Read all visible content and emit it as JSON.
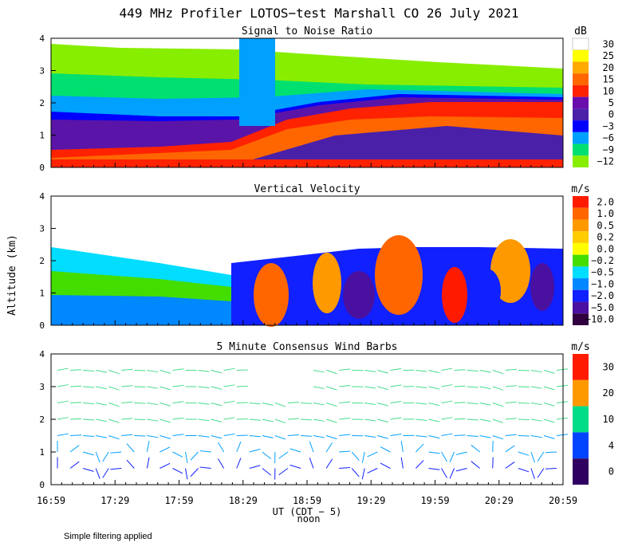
{
  "chart_data": {
    "type": "heatmap",
    "title": "449 MHz Profiler LOTOS−test Marshall CO 26 July 2021",
    "xlabel": "UT (CDT − 5)",
    "xlabel_note": "noon",
    "ylabel": "Altitude (km)",
    "x_ticks": [
      "16:59",
      "17:29",
      "17:59",
      "18:29",
      "18:59",
      "19:29",
      "19:59",
      "20:29",
      "20:59"
    ],
    "xlim": [
      "16:59",
      "20:59"
    ],
    "footnote": "Simple filtering applied",
    "panels": [
      {
        "id": "snr",
        "title": "Signal to Noise Ratio",
        "unit": "dB",
        "ylim": [
          0,
          4
        ],
        "y_ticks": [
          0,
          1,
          2,
          3,
          4
        ],
        "legend": {
          "labels": [
            "30",
            "25",
            "20",
            "15",
            "10",
            "5",
            "0",
            "−3",
            "−6",
            "−9",
            "−12"
          ],
          "colors": [
            "#ffffff",
            "#ffff00",
            "#ffaa00",
            "#ff6600",
            "#ff2200",
            "#6a0dad",
            "#4a20a8",
            "#0000ff",
            "#00a0ff",
            "#00e070",
            "#88ee00"
          ]
        },
        "layers": [
          {
            "name": "strong low-level return (10–20 dB)",
            "bottom_km": 0.15,
            "top_km": [
              0.35,
              0.4,
              0.5,
              1.1,
              1.5,
              1.9,
              2.1,
              2.2,
              2.3
            ]
          },
          {
            "name": "purple band (0–5 dB)",
            "top_km": [
              1.5,
              1.5,
              1.6,
              1.7,
              2.0,
              2.3,
              2.5,
              2.6,
              2.6
            ]
          },
          {
            "name": "green/white top (−12 to −6 dB)",
            "top_km": [
              3.8,
              3.6,
              3.6,
              3.5,
              3.2,
              3.0,
              2.9,
              2.8,
              2.8
            ]
          }
        ]
      },
      {
        "id": "vv",
        "title": "Vertical Velocity",
        "unit": "m/s",
        "ylim": [
          0,
          4
        ],
        "y_ticks": [
          0,
          1,
          2,
          3,
          4
        ],
        "legend": {
          "labels": [
            "2.0",
            "1.0",
            "0.5",
            "0.2",
            "0.0",
            "−0.2",
            "−0.5",
            "−1.0",
            "−2.0",
            "−5.0",
            "−10.0"
          ],
          "colors": [
            "#ff1a00",
            "#ff6600",
            "#ff9900",
            "#ffcc00",
            "#ffff00",
            "#44dd00",
            "#00ddff",
            "#0088ff",
            "#1020ff",
            "#4a10a0",
            "#300040"
          ]
        },
        "data_top_km": [
          1.6,
          1.6,
          1.7,
          1.7,
          2.2,
          2.3,
          2.4,
          2.5,
          2.5
        ]
      },
      {
        "id": "wind",
        "title": "5 Minute Consensus Wind Barbs",
        "unit": "m/s",
        "ylim": [
          0,
          4
        ],
        "y_ticks": [
          0,
          1,
          2,
          3,
          4
        ],
        "legend": {
          "labels": [
            "30",
            "20",
            "10",
            "4",
            "0"
          ],
          "colors": [
            "#ff1a00",
            "#ff9900",
            "#00dd88",
            "#0044ff",
            "#300060"
          ]
        },
        "speed_profile": [
          {
            "alt_km": 0.5,
            "speed_ms": 2
          },
          {
            "alt_km": 1.0,
            "speed_ms": 4
          },
          {
            "alt_km": 1.5,
            "speed_ms": 7
          },
          {
            "alt_km": 2.0,
            "speed_ms": 10
          },
          {
            "alt_km": 2.5,
            "speed_ms": 12
          },
          {
            "alt_km": 3.0,
            "speed_ms": 13
          },
          {
            "alt_km": 3.5,
            "speed_ms": 14
          }
        ]
      }
    ]
  }
}
